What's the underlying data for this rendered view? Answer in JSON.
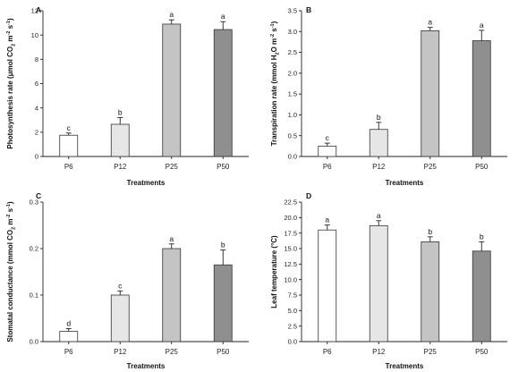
{
  "chart_data": [
    {
      "type": "bar",
      "panel": "A",
      "categories": [
        "P6",
        "P12",
        "P25",
        "P50"
      ],
      "values": [
        1.75,
        2.65,
        10.9,
        10.45
      ],
      "errors": [
        0.18,
        0.55,
        0.35,
        0.65
      ],
      "letters": [
        "c",
        "b",
        "a",
        "a"
      ],
      "ylabel_parts": [
        "Photosynthesis rate (",
        "μ",
        "mol CO",
        "2",
        " m",
        "-2",
        " s",
        "-1",
        ")"
      ],
      "xlabel": "Treatments",
      "ylim": [
        0,
        12
      ],
      "yticks": [
        0,
        2,
        4,
        6,
        8,
        10,
        12
      ],
      "ytick_labels": [
        "0",
        "2",
        "4",
        "6",
        "8",
        "10",
        "12"
      ]
    },
    {
      "type": "bar",
      "panel": "B",
      "categories": [
        "P6",
        "P12",
        "P25",
        "P50"
      ],
      "values": [
        0.25,
        0.65,
        3.02,
        2.78
      ],
      "errors": [
        0.07,
        0.17,
        0.08,
        0.25
      ],
      "letters": [
        "c",
        "b",
        "a",
        "a"
      ],
      "ylabel_parts": [
        "Transpiration rate (mmol H",
        "2",
        "O m",
        "-2",
        " s",
        "-1",
        ")"
      ],
      "xlabel": "Treatments",
      "ylim": [
        0,
        3.5
      ],
      "yticks": [
        0,
        0.5,
        1,
        1.5,
        2,
        2.5,
        3,
        3.5
      ],
      "ytick_labels": [
        "0.0",
        "0.5",
        "1.0",
        "1.5",
        "2.0",
        "2.5",
        "3.0",
        "3.5"
      ]
    },
    {
      "type": "bar",
      "panel": "C",
      "categories": [
        "P6",
        "P12",
        "P25",
        "P50"
      ],
      "values": [
        0.022,
        0.1,
        0.2,
        0.165
      ],
      "errors": [
        0.006,
        0.009,
        0.01,
        0.032
      ],
      "letters": [
        "d",
        "c",
        "a",
        "b"
      ],
      "ylabel_parts": [
        "Stomatal conductance (mmol CO",
        "2",
        " m",
        "-2",
        " s",
        "-1",
        ")"
      ],
      "xlabel": "Treatments",
      "ylim": [
        0,
        0.3
      ],
      "yticks": [
        0,
        0.1,
        0.2,
        0.3
      ],
      "ytick_labels": [
        "0.0",
        "0.1",
        "0.2",
        "0.3"
      ]
    },
    {
      "type": "bar",
      "panel": "D",
      "categories": [
        "P6",
        "P12",
        "P25",
        "P50"
      ],
      "values": [
        18.0,
        18.7,
        16.1,
        14.6
      ],
      "errors": [
        0.8,
        0.8,
        0.8,
        1.5
      ],
      "letters": [
        "a",
        "a",
        "b",
        "b"
      ],
      "ylabel_parts": [
        "Leaf temperature (°C)"
      ],
      "xlabel": "Treatments",
      "ylim": [
        0,
        22.5
      ],
      "yticks": [
        0,
        2.5,
        5,
        7.5,
        10,
        12.5,
        15,
        17.5,
        20,
        22.5
      ],
      "ytick_labels": [
        "0.0",
        "2.5",
        "5.0",
        "7.5",
        "10.0",
        "12.5",
        "15.0",
        "17.5",
        "20.0",
        "22.5"
      ]
    }
  ],
  "colors": {
    "bar_fills": [
      "#ffffff",
      "#e6e6e6",
      "#c4c4c4",
      "#8f8f8f"
    ]
  }
}
